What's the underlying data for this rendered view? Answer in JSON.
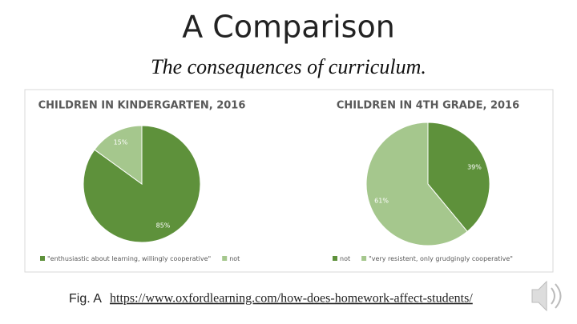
{
  "slide": {
    "title": "A Comparison",
    "subtitle": "The consequences of curriculum.",
    "caption": "Fig. A",
    "link": "https://www.oxfordlearning.com/how-does-homework-affect-students/"
  },
  "chart_data": [
    {
      "type": "pie",
      "title": "CHILDREN IN KINDERGARTEN, 2016",
      "categories": [
        "\"enthusiastic about learning, willingly cooperative\"",
        "not"
      ],
      "values": [
        85,
        15
      ],
      "value_labels": [
        "85%",
        "15%"
      ],
      "colors": [
        "#5e913b",
        "#a5c78d"
      ]
    },
    {
      "type": "pie",
      "title": "CHILDREN IN 4TH GRADE, 2016",
      "categories": [
        "not",
        "\"very resistent, only grudgingly cooperative\""
      ],
      "values": [
        39,
        61
      ],
      "value_labels": [
        "39%",
        "61%"
      ],
      "colors": [
        "#5e913b",
        "#a5c78d"
      ]
    }
  ]
}
